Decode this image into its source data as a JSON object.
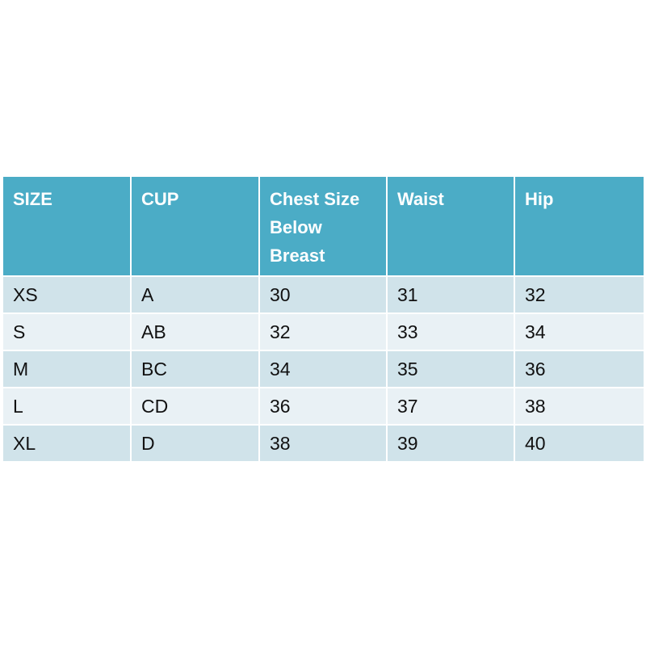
{
  "table": {
    "header": [
      "SIZE",
      "CUP",
      "Chest Size Below Breast",
      "Waist",
      "Hip"
    ],
    "rows": [
      [
        "XS",
        "A",
        30,
        31,
        32
      ],
      [
        "S",
        "AB",
        32,
        33,
        34
      ],
      [
        "M",
        "BC",
        34,
        35,
        36
      ],
      [
        "L",
        "CD",
        36,
        37,
        38
      ],
      [
        "XL",
        "D",
        38,
        39,
        40
      ]
    ]
  }
}
